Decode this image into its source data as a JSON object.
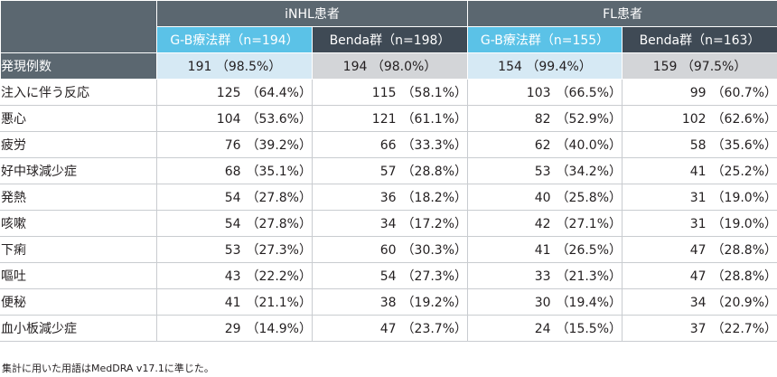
{
  "table": {
    "groups": [
      "iNHL患者",
      "FL患者"
    ],
    "subheaders": [
      "G-B療法群（n=194）",
      "Benda群（n=198）",
      "G-B療法群（n=155）",
      "Benda群（n=163）"
    ],
    "total_row": {
      "label": "発現例数",
      "cells": [
        {
          "n": "191",
          "p": "（98.5%）"
        },
        {
          "n": "194",
          "p": "（98.0%）"
        },
        {
          "n": "154",
          "p": "（99.4%）"
        },
        {
          "n": "159",
          "p": "（97.5%）"
        }
      ]
    },
    "rows": [
      {
        "label": "注入に伴う反応",
        "cells": [
          {
            "n": "125",
            "p": "（64.4%）"
          },
          {
            "n": "115",
            "p": "（58.1%）"
          },
          {
            "n": "103",
            "p": "（66.5%）"
          },
          {
            "n": "99",
            "p": "（60.7%）"
          }
        ]
      },
      {
        "label": "悪心",
        "cells": [
          {
            "n": "104",
            "p": "（53.6%）"
          },
          {
            "n": "121",
            "p": "（61.1%）"
          },
          {
            "n": "82",
            "p": "（52.9%）"
          },
          {
            "n": "102",
            "p": "（62.6%）"
          }
        ]
      },
      {
        "label": "疲労",
        "cells": [
          {
            "n": "76",
            "p": "（39.2%）"
          },
          {
            "n": "66",
            "p": "（33.3%）"
          },
          {
            "n": "62",
            "p": "（40.0%）"
          },
          {
            "n": "58",
            "p": "（35.6%）"
          }
        ]
      },
      {
        "label": "好中球減少症",
        "cells": [
          {
            "n": "68",
            "p": "（35.1%）"
          },
          {
            "n": "57",
            "p": "（28.8%）"
          },
          {
            "n": "53",
            "p": "（34.2%）"
          },
          {
            "n": "41",
            "p": "（25.2%）"
          }
        ]
      },
      {
        "label": "発熱",
        "cells": [
          {
            "n": "54",
            "p": "（27.8%）"
          },
          {
            "n": "36",
            "p": "（18.2%）"
          },
          {
            "n": "40",
            "p": "（25.8%）"
          },
          {
            "n": "31",
            "p": "（19.0%）"
          }
        ]
      },
      {
        "label": "咳嗽",
        "cells": [
          {
            "n": "54",
            "p": "（27.8%）"
          },
          {
            "n": "34",
            "p": "（17.2%）"
          },
          {
            "n": "42",
            "p": "（27.1%）"
          },
          {
            "n": "31",
            "p": "（19.0%）"
          }
        ]
      },
      {
        "label": "下痢",
        "cells": [
          {
            "n": "53",
            "p": "（27.3%）"
          },
          {
            "n": "60",
            "p": "（30.3%）"
          },
          {
            "n": "41",
            "p": "（26.5%）"
          },
          {
            "n": "47",
            "p": "（28.8%）"
          }
        ]
      },
      {
        "label": "嘔吐",
        "cells": [
          {
            "n": "43",
            "p": "（22.2%）"
          },
          {
            "n": "54",
            "p": "（27.3%）"
          },
          {
            "n": "33",
            "p": "（21.3%）"
          },
          {
            "n": "47",
            "p": "（28.8%）"
          }
        ]
      },
      {
        "label": "便秘",
        "cells": [
          {
            "n": "41",
            "p": "（21.1%）"
          },
          {
            "n": "38",
            "p": "（19.2%）"
          },
          {
            "n": "30",
            "p": "（19.4%）"
          },
          {
            "n": "34",
            "p": "（20.9%）"
          }
        ]
      },
      {
        "label": "血小板減少症",
        "cells": [
          {
            "n": "29",
            "p": "（14.9%）"
          },
          {
            "n": "47",
            "p": "（23.7%）"
          },
          {
            "n": "24",
            "p": "（15.5%）"
          },
          {
            "n": "37",
            "p": "（22.7%）"
          }
        ]
      }
    ]
  },
  "footnote": "集計に用いた用語はMedDRA v17.1に準じた。",
  "colors": {
    "header_gray": "#5b6770",
    "header_dark": "#3f4a55",
    "gb_cyan": "#5bc2e7",
    "gb_light": "#d6e9f4",
    "benda_light": "#d3d5d8"
  }
}
